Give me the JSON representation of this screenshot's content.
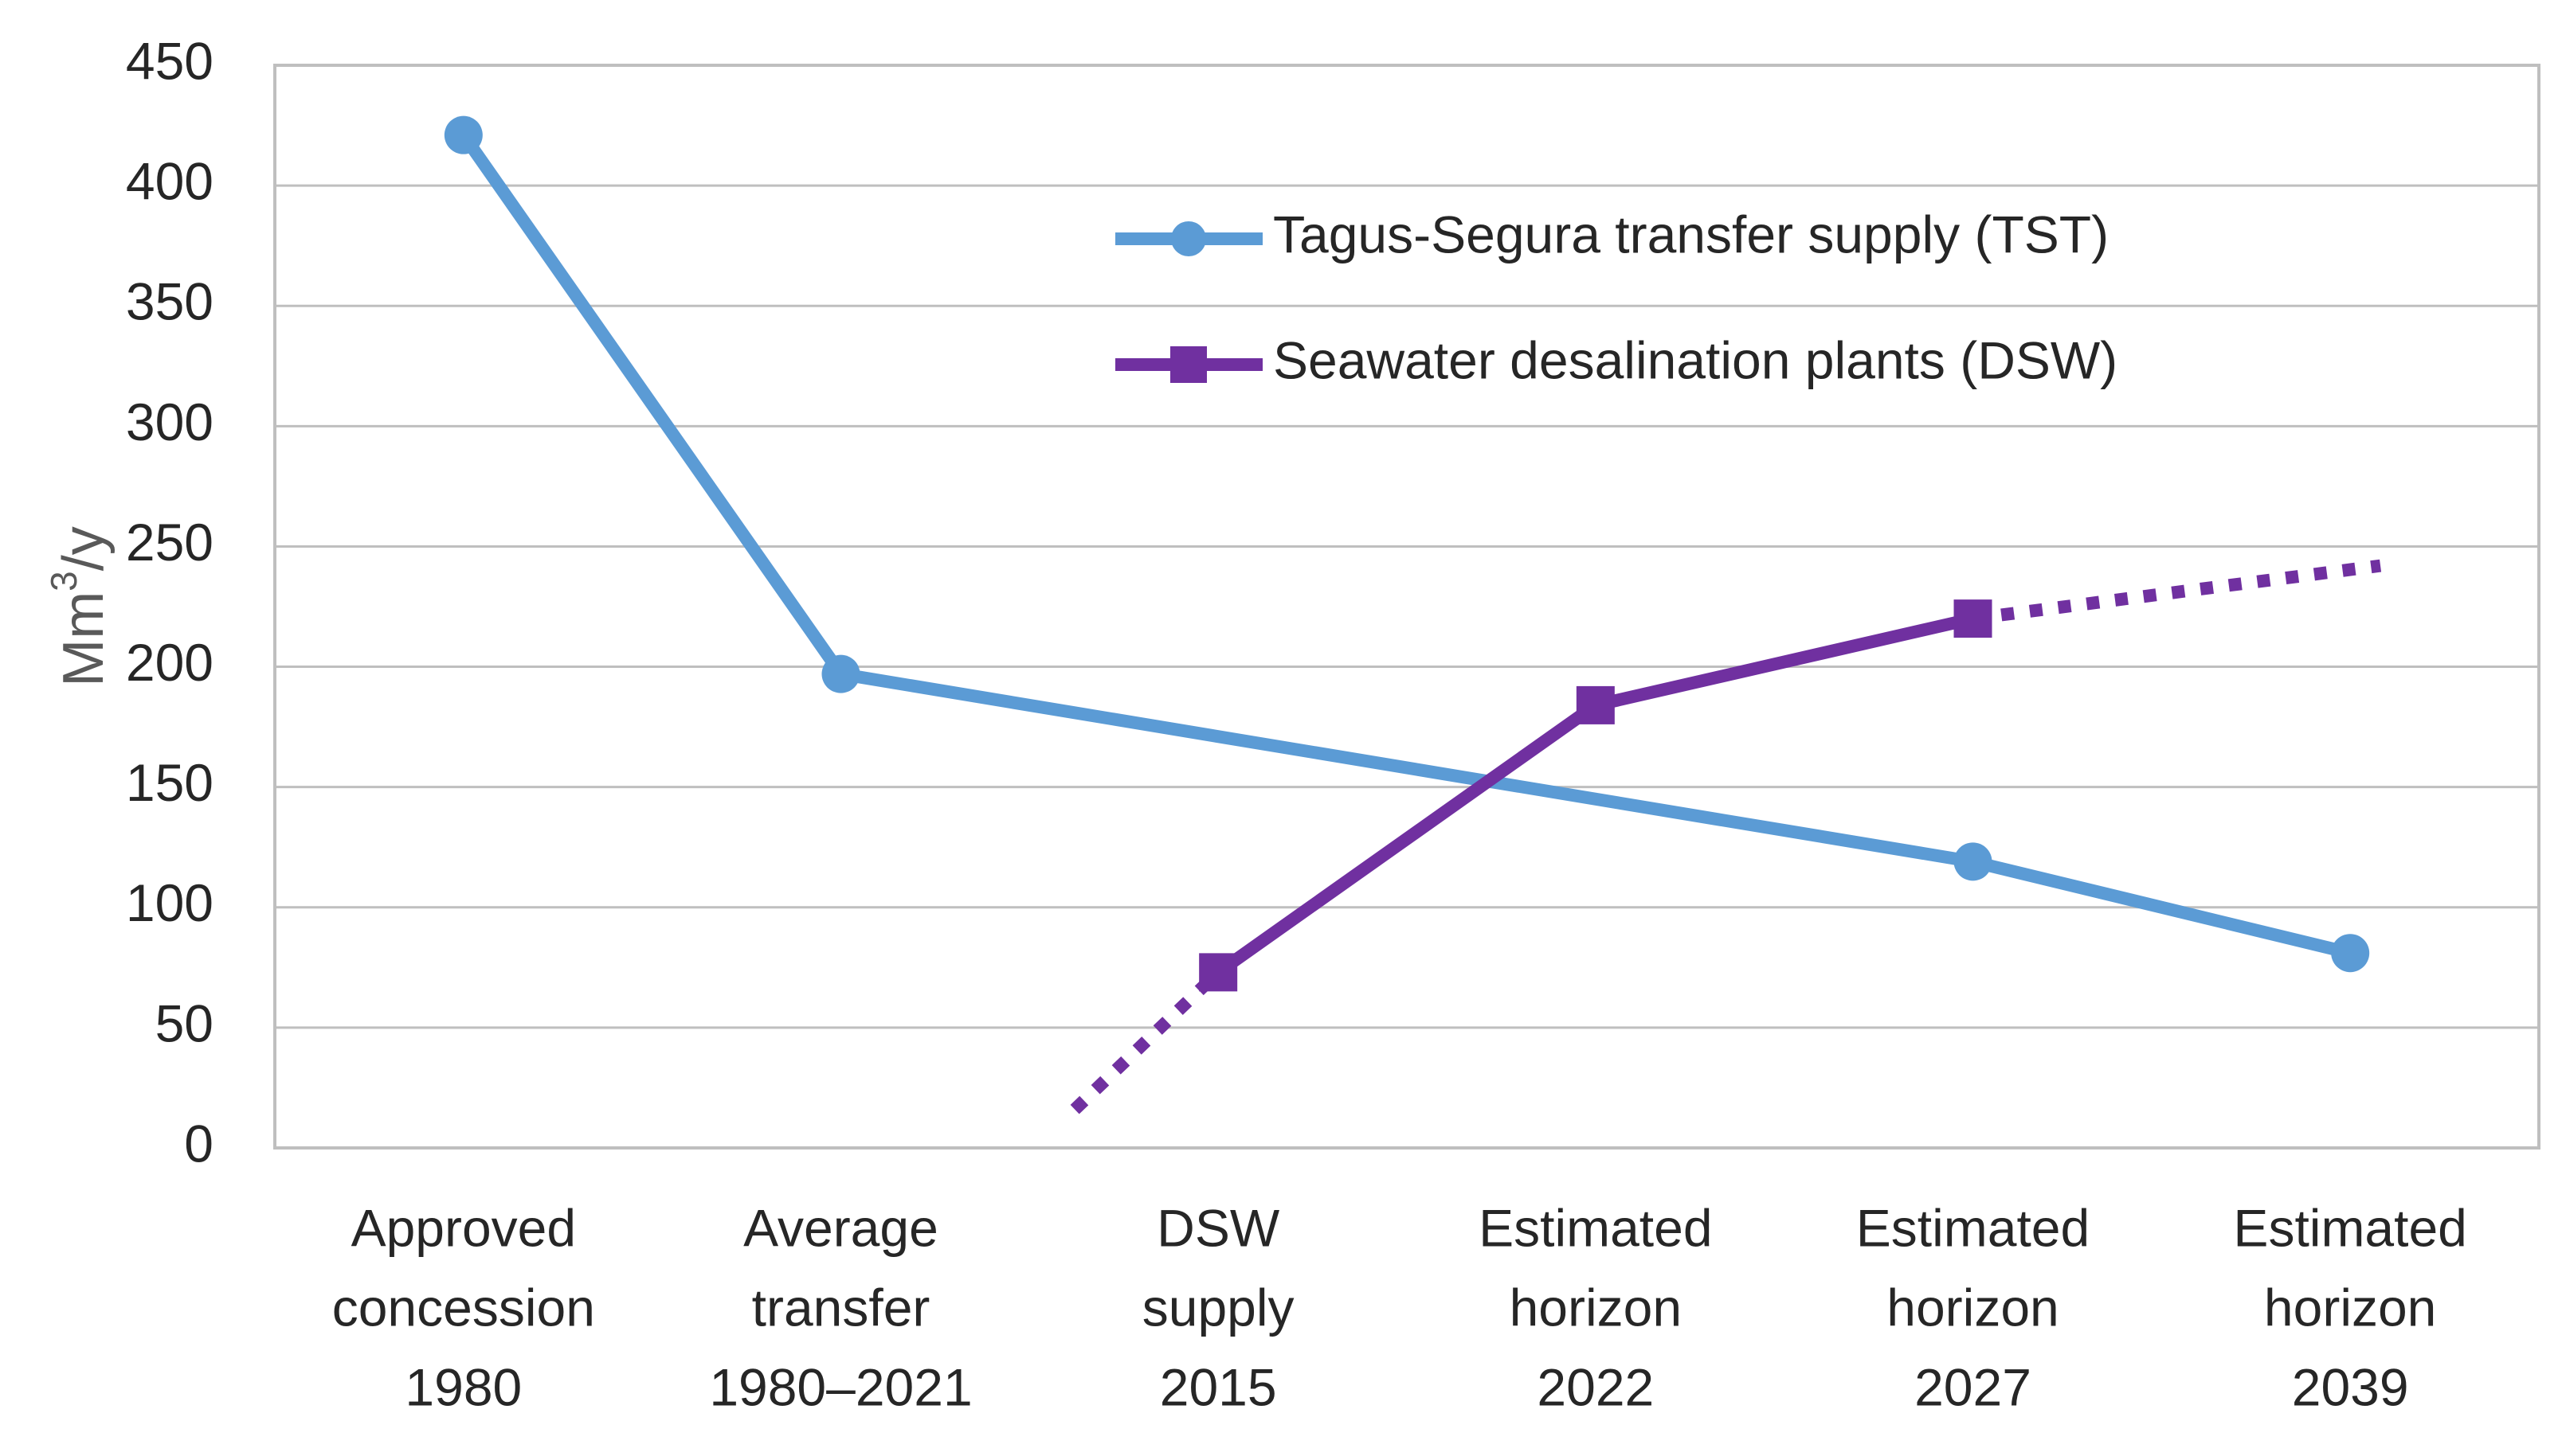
{
  "chart_data": {
    "type": "line",
    "title": "",
    "xlabel": "",
    "ylabel": {
      "base": "Mm",
      "sup": "3",
      "suffix": "/y"
    },
    "ylim": [
      0,
      450
    ],
    "yticks": [
      0,
      50,
      100,
      150,
      200,
      250,
      300,
      350,
      400,
      450
    ],
    "grid": true,
    "legend_position": "top-right",
    "categories": [
      [
        "Approved",
        "concession",
        "1980"
      ],
      [
        "Average",
        "transfer",
        "1980–2021"
      ],
      [
        "DSW",
        "supply",
        "2015"
      ],
      [
        "Estimated",
        "horizon",
        "2022"
      ],
      [
        "Estimated",
        "horizon",
        "2027"
      ],
      [
        "Estimated",
        "horizon",
        "2039"
      ]
    ],
    "series": [
      {
        "name": "Tagus-Segura transfer supply (TST)",
        "color": "#5B9BD5",
        "marker": "circle",
        "values": [
          421,
          197,
          null,
          null,
          119,
          81
        ]
      },
      {
        "name": "Seawater desalination plants (DSW)",
        "color": "#7030A0",
        "marker": "square",
        "values": [
          null,
          null,
          73,
          184,
          220,
          null
        ]
      }
    ],
    "projections": [
      {
        "series": "Seawater desalination plants (DSW)",
        "style": "dotted",
        "color": "#7030A0",
        "points": [
          [
            1.62,
            16
          ],
          [
            2,
            73
          ]
        ]
      },
      {
        "series": "Seawater desalination plants (DSW)",
        "style": "dotted",
        "color": "#7030A0",
        "points": [
          [
            4,
            220
          ],
          [
            5.08,
            242
          ]
        ]
      }
    ]
  }
}
